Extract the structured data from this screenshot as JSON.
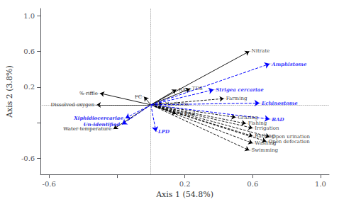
{
  "chart_data": {
    "type": "biplot",
    "xlabel": "Axis 1 (54.8%)",
    "ylabel": "Axis 2 (3.8%)",
    "xlim": [
      -0.65,
      1.05
    ],
    "ylim": [
      -0.78,
      1.08
    ],
    "xticks": [
      -0.6,
      {
        "value": -0.2,
        "label": ""
      },
      0.2,
      0.6,
      {
        "value": 1.0,
        "label": "1.0"
      }
    ],
    "yticks": [
      -0.6,
      {
        "value": -0.2,
        "label": ""
      },
      0.2,
      0.6,
      {
        "value": 1.0,
        "label": "1.0"
      }
    ],
    "grid": false,
    "origin": [
      0.0,
      0.0
    ],
    "series": [
      {
        "color": "black",
        "line_style": "solid",
        "labels": [
          "Nitrate",
          "FC",
          "RAM",
          "TDS",
          "Hardness",
          "% riffle",
          "Dissolved oxygen",
          "% Pool",
          "Water temperature"
        ],
        "x": [
          0.58,
          -0.04,
          0.15,
          0.23,
          0.07,
          -0.3,
          -0.32,
          0.15,
          -0.22
        ],
        "y": [
          0.6,
          0.09,
          0.17,
          0.18,
          0.01,
          0.13,
          0.0,
          -0.1,
          -0.27
        ]
      },
      {
        "color": "black",
        "line_style": "dashed",
        "labels": [
          "Farming",
          "Grazing",
          "Fishing",
          "Irrigation",
          "Bathing",
          "Open urination",
          "Open defecation",
          "Washing",
          "Swimming"
        ],
        "x": [
          0.43,
          0.5,
          0.56,
          0.6,
          0.6,
          0.7,
          0.68,
          0.6,
          0.58
        ],
        "y": [
          0.07,
          -0.14,
          -0.21,
          -0.26,
          -0.35,
          -0.36,
          -0.41,
          -0.43,
          -0.51
        ]
      },
      {
        "color": "blue",
        "line_style": "dashed",
        "labels": [
          "Amphistome",
          "Strigea cercariae",
          "Echinostome",
          "BAD",
          "Xiphidiocercariae",
          "Un-identified",
          "LPD"
        ],
        "x": [
          0.7,
          0.37,
          0.64,
          0.7,
          -0.15,
          -0.17,
          0.03
        ],
        "y": [
          0.46,
          0.17,
          0.02,
          -0.16,
          -0.15,
          -0.22,
          -0.3
        ]
      }
    ]
  }
}
